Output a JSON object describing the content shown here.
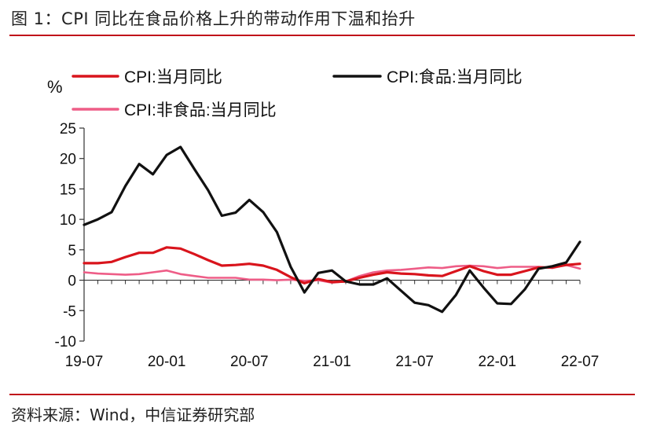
{
  "title": "图 1：CPI 同比在食品价格上升的带动作用下温和抬升",
  "source": "资料来源：Wind，中信证券研究部",
  "colors": {
    "rule": "#c0131a"
  },
  "chart_data": {
    "type": "line",
    "ylabel": "%",
    "ylim": [
      -10,
      25
    ],
    "yticks": [
      25,
      20,
      15,
      10,
      5,
      0,
      -5,
      -10
    ],
    "xticks": [
      "19-07",
      "20-01",
      "20-07",
      "21-01",
      "21-07",
      "22-01",
      "22-07"
    ],
    "x": [
      "19-07",
      "19-08",
      "19-09",
      "19-10",
      "19-11",
      "19-12",
      "20-01",
      "20-02",
      "20-03",
      "20-04",
      "20-05",
      "20-06",
      "20-07",
      "20-08",
      "20-09",
      "20-10",
      "20-11",
      "20-12",
      "21-01",
      "21-02",
      "21-03",
      "21-04",
      "21-05",
      "21-06",
      "21-07",
      "21-08",
      "21-09",
      "21-10",
      "21-11",
      "21-12",
      "22-01",
      "22-02",
      "22-03",
      "22-04",
      "22-05",
      "22-06",
      "22-07"
    ],
    "legend_position": "top",
    "series": [
      {
        "name": "CPI:当月同比",
        "color": "#d9141c",
        "values": [
          2.8,
          2.8,
          3.0,
          3.8,
          4.5,
          4.5,
          5.4,
          5.2,
          4.3,
          3.3,
          2.4,
          2.5,
          2.7,
          2.4,
          1.7,
          0.5,
          -0.5,
          0.2,
          -0.3,
          -0.2,
          0.4,
          0.9,
          1.3,
          1.1,
          1.0,
          0.8,
          0.7,
          1.5,
          2.3,
          1.5,
          0.9,
          0.9,
          1.5,
          2.1,
          2.1,
          2.5,
          2.7
        ]
      },
      {
        "name": "CPI:食品:当月同比",
        "color": "#111111",
        "values": [
          9.1,
          10.0,
          11.2,
          15.5,
          19.1,
          17.4,
          20.6,
          21.9,
          18.3,
          14.8,
          10.6,
          11.1,
          13.2,
          11.2,
          7.9,
          2.2,
          -2.0,
          1.2,
          1.6,
          -0.2,
          -0.7,
          -0.7,
          0.3,
          -1.7,
          -3.7,
          -4.1,
          -5.2,
          -2.4,
          1.6,
          -1.2,
          -3.8,
          -3.9,
          -1.5,
          1.9,
          2.3,
          2.9,
          6.3
        ]
      },
      {
        "name": "CPI:非食品:当月同比",
        "color": "#ee5d87",
        "values": [
          1.3,
          1.1,
          1.0,
          0.9,
          1.0,
          1.3,
          1.6,
          1.0,
          0.7,
          0.4,
          0.4,
          0.4,
          0.1,
          0.1,
          0.0,
          0.1,
          -0.1,
          0.0,
          -0.4,
          -0.2,
          0.7,
          1.3,
          1.6,
          1.7,
          1.9,
          2.1,
          2.0,
          2.3,
          2.4,
          2.3,
          2.0,
          2.2,
          2.2,
          2.2,
          2.0,
          2.5,
          1.9
        ]
      }
    ]
  }
}
